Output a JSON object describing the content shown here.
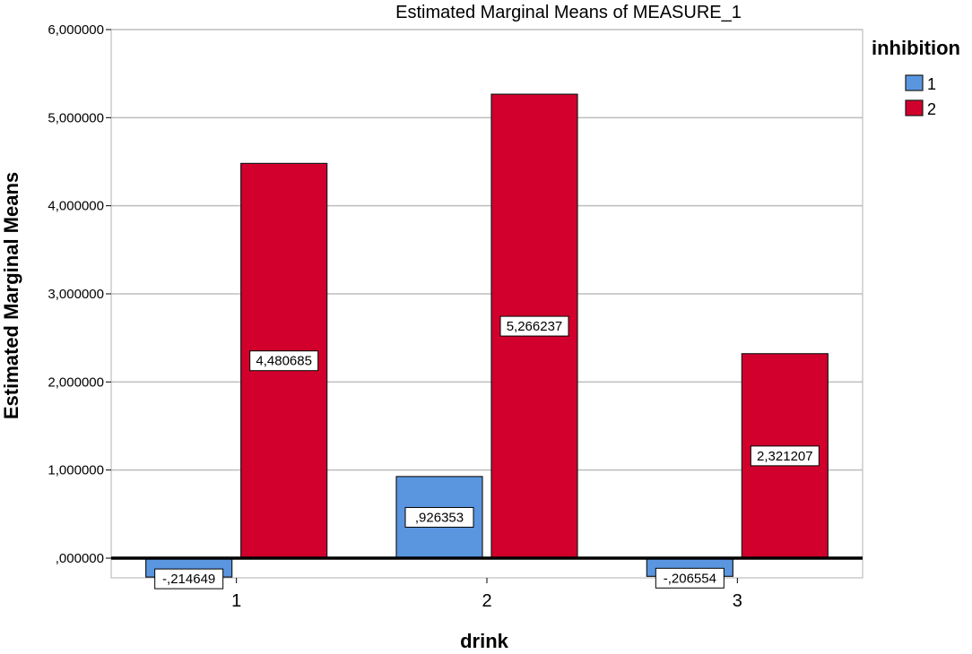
{
  "chart_data": {
    "type": "bar",
    "title": "Estimated Marginal Means of MEASURE_1",
    "xlabel": "drink",
    "ylabel": "Estimated Marginal Means",
    "categories": [
      "1",
      "2",
      "3"
    ],
    "legend_title": "inhibition",
    "legend_position": "top-right",
    "grid": true,
    "ylim": [
      -0.2,
      6.0
    ],
    "yticks": [
      0,
      1,
      2,
      3,
      4,
      5,
      6
    ],
    "ytick_labels": [
      ",000000",
      "1,000000",
      "2,000000",
      "3,000000",
      "4,000000",
      "5,000000",
      "6,000000"
    ],
    "series": [
      {
        "name": "1",
        "color": "#5a96e0",
        "values": [
          -0.214649,
          0.926353,
          -0.206554
        ],
        "labels": [
          "-,214649",
          ",926353",
          "-,206554"
        ]
      },
      {
        "name": "2",
        "color": "#d2002c",
        "values": [
          4.480685,
          5.266237,
          2.321207
        ],
        "labels": [
          "4,480685",
          "5,266237",
          "2,321207"
        ]
      }
    ]
  }
}
